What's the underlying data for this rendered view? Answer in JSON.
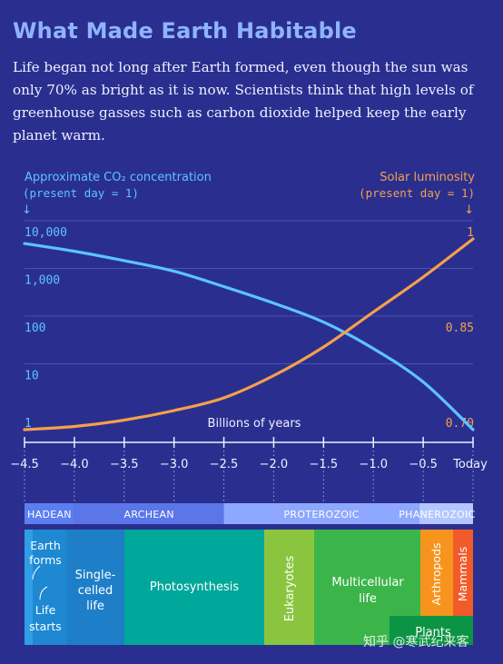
{
  "title": "What Made Earth Habitable",
  "intro": "Life began not long after Earth formed, even though the sun was only 70% as bright as it is now. Scientists think that high levels of greenhouse gasses such as carbon dioxide helped keep the early planet warm.",
  "watermark": "知乎 @寒武纪来客",
  "chart_data": {
    "type": "line",
    "xlabel": "Billions of years",
    "x_ticks": [
      "−4.5",
      "−4.0",
      "−3.5",
      "−3.0",
      "−2.5",
      "−2.0",
      "−1.5",
      "−1.0",
      "−0.5",
      "Today"
    ],
    "xlim": [
      -4.5,
      0
    ],
    "left_axis": {
      "label_line1": "Approximate CO₂ concentration",
      "label_line2": "(present day = 1)",
      "arrow": "↓",
      "scale": "log",
      "ticks": [
        {
          "value": 10000,
          "label": "10,000"
        },
        {
          "value": 1000,
          "label": "1,000"
        },
        {
          "value": 100,
          "label": "100"
        },
        {
          "value": 10,
          "label": "10"
        },
        {
          "value": 1,
          "label": "1"
        }
      ]
    },
    "right_axis": {
      "label_line1": "Solar luminosity",
      "label_line2": "(present day = 1)",
      "arrow": "↓",
      "ticks": [
        {
          "value": 1,
          "label": "1"
        },
        {
          "value": 0.85,
          "label": "0.85"
        },
        {
          "value": 0.7,
          "label": "0.70"
        }
      ]
    },
    "series": [
      {
        "color": "#5cc4ff",
        "axis": "left",
        "x": [
          -4.5,
          -4.0,
          -3.5,
          -3.0,
          -2.5,
          -2.0,
          -1.5,
          -1.0,
          -0.5,
          0
        ],
        "values": [
          8000,
          5500,
          3500,
          2100,
          1000,
          450,
          180,
          50,
          10,
          1
        ]
      },
      {
        "color": "#f5a04a",
        "axis": "right",
        "x": [
          -4.5,
          -4.0,
          -3.5,
          -3.0,
          -2.5,
          -2.0,
          -1.5,
          -1.0,
          -0.5,
          0
        ],
        "values": [
          0.7,
          0.705,
          0.715,
          0.73,
          0.75,
          0.785,
          0.83,
          0.885,
          0.94,
          1.0
        ]
      }
    ]
  },
  "eons": [
    {
      "label": "HADEAN",
      "start": -4.5,
      "end": -4.0,
      "color": "#5b7ff0"
    },
    {
      "label": "ARCHEAN",
      "start": -4.0,
      "end": -2.5,
      "color": "#5b76e8"
    },
    {
      "label": "PROTEROZOIC",
      "start": -2.5,
      "end": -0.54,
      "color": "#8ea8ff"
    },
    {
      "label": "PHANEROZOIC",
      "start": -0.54,
      "end": 0,
      "color": "#b4c6ff"
    }
  ],
  "life_events": [
    {
      "key": "earth-forms",
      "label": "Earth forms",
      "color": "#1e88d2"
    },
    {
      "key": "life-starts",
      "label": "Life starts",
      "color": "#1e88d2"
    },
    {
      "key": "single-celled",
      "label": "Single-celled life",
      "color": "#1e7fc8"
    },
    {
      "key": "photosynthesis",
      "label": "Photosynthesis",
      "color": "#00a79b"
    },
    {
      "key": "eukaryotes",
      "label": "Eukaryotes",
      "color": "#8bc53f"
    },
    {
      "key": "multicellular",
      "label": "Multicellular life",
      "color": "#3bb54a"
    },
    {
      "key": "arthropods",
      "label": "Arthropods",
      "color": "#f7941d"
    },
    {
      "key": "mammals",
      "label": "Mammals",
      "color": "#f15a29"
    },
    {
      "key": "plants",
      "label": "Plants",
      "color": "#0b9444"
    }
  ]
}
